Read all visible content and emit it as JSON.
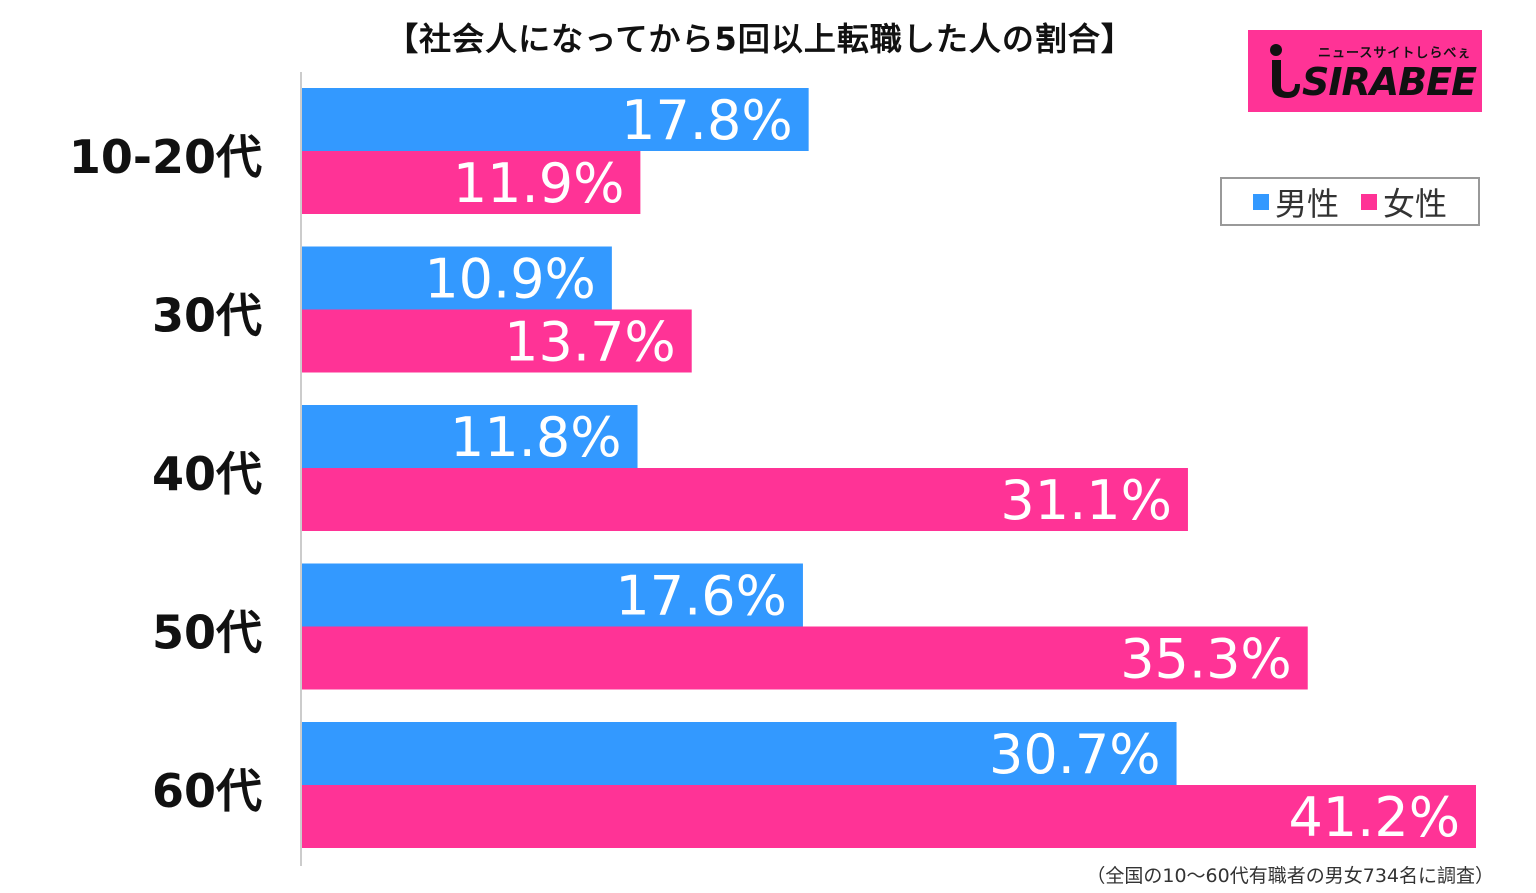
{
  "title": "【社会人になってから5回以上転職した人の割合】",
  "logo": {
    "tagline": "ニュースサイトしらべぇ",
    "wordmark": "SIRABEE",
    "background": "#ff3396"
  },
  "footnote": "（全国の10～60代有職者の男女734名に調査）",
  "chart_data": {
    "type": "bar",
    "orientation": "horizontal",
    "title": "【社会人になってから5回以上転職した人の割合】",
    "categories": [
      "10-20代",
      "30代",
      "40代",
      "50代",
      "60代"
    ],
    "series": [
      {
        "name": "男性",
        "color": "#3399ff",
        "values": [
          17.8,
          10.9,
          11.8,
          17.6,
          30.7
        ],
        "labels": [
          "17.8%",
          "10.9%",
          "11.8%",
          "17.6%",
          "30.7%"
        ]
      },
      {
        "name": "女性",
        "color": "#ff3396",
        "values": [
          11.9,
          13.7,
          31.1,
          35.3,
          41.2
        ],
        "labels": [
          "11.9%",
          "13.7%",
          "31.1%",
          "35.3%",
          "41.2%"
        ]
      }
    ],
    "unit": "%",
    "xlim": [
      0,
      41.2
    ],
    "grid": false,
    "legend_position": "top-right"
  }
}
